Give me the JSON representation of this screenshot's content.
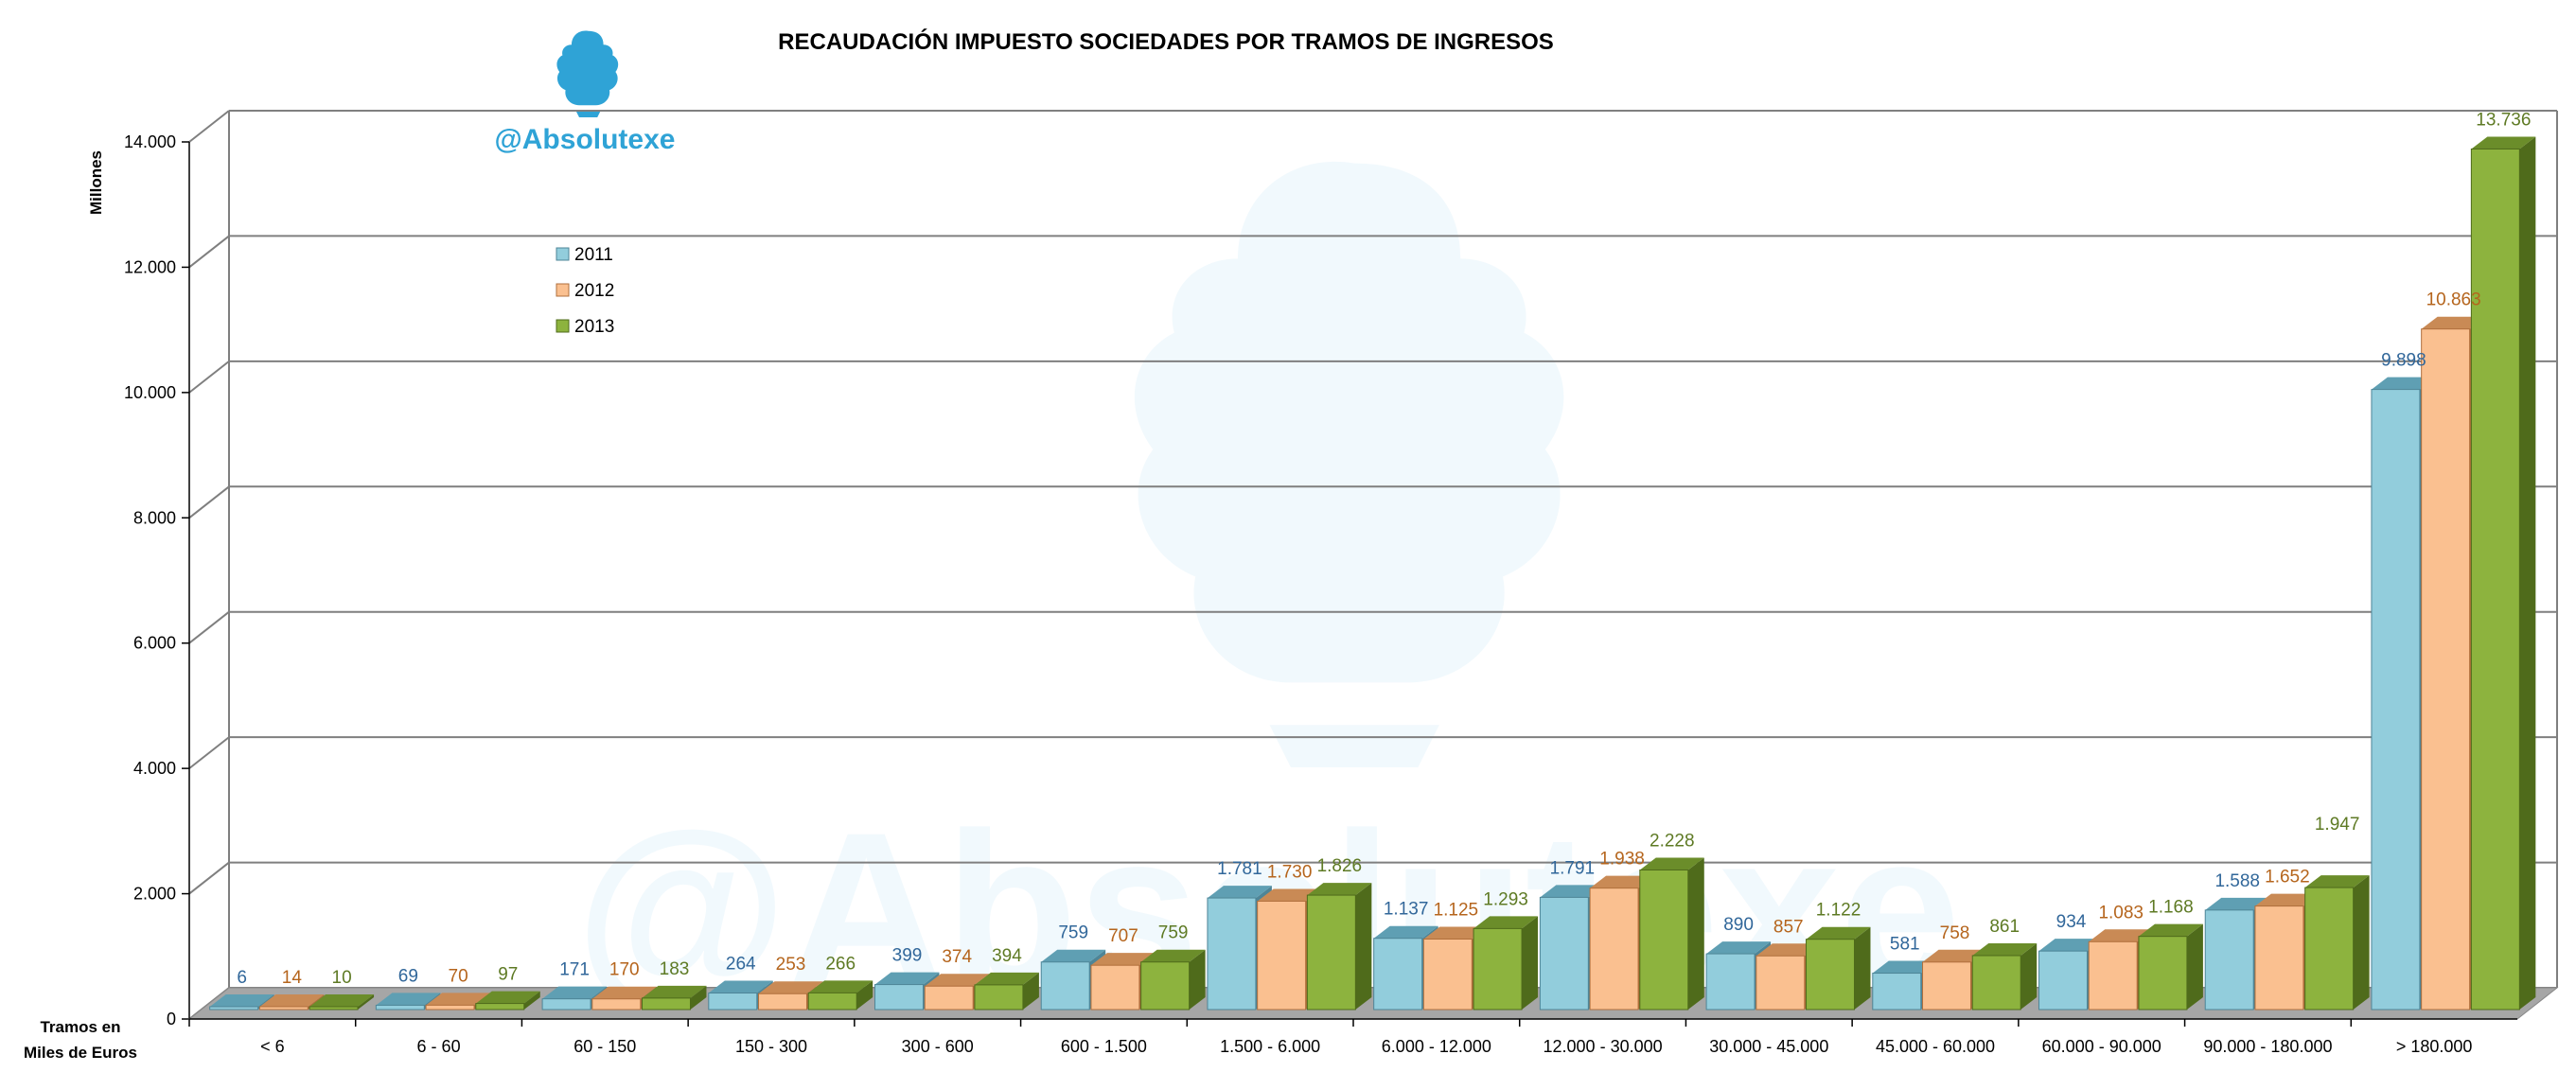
{
  "logo": {
    "handle": "@Absolutexe",
    "emblem_icon": "griffin-icon",
    "color": "#2fa3d6"
  },
  "watermark": {
    "text": "@Absolutexe",
    "emblem_icon": "griffin-icon"
  },
  "colors": {
    "2011": "#92cddc",
    "2011_top": "#5f9fb3",
    "2011_side": "#4e8597",
    "2011_label": "#31679a",
    "2012": "#fac090",
    "2012_top": "#c98a55",
    "2012_side": "#b06f3c",
    "2012_label": "#b5651d",
    "2013": "#8db33e",
    "2013_top": "#6b8d2a",
    "2013_side": "#4f6b1b",
    "2013_label": "#5e7a24",
    "floor": "#a6a6a6",
    "grid": "#7f7f7f"
  },
  "chart_data": {
    "type": "bar",
    "title": "RECAUDACIÓN IMPUESTO SOCIEDADES POR TRAMOS DE INGRESOS",
    "ylabel": "Millones",
    "xlabel": "Tramos en Miles de Euros",
    "xlabel_lines": [
      "Tramos en",
      "Miles de Euros"
    ],
    "ylim": [
      0,
      14000
    ],
    "yticks": [
      0,
      2000,
      4000,
      6000,
      8000,
      10000,
      12000,
      14000
    ],
    "ytick_labels": [
      "0",
      "2.000",
      "4.000",
      "6.000",
      "8.000",
      "10.000",
      "12.000",
      "14.000"
    ],
    "grid": true,
    "legend_position": "top-left",
    "categories": [
      "< 6",
      "6 - 60",
      "60 - 150",
      "150 - 300",
      "300 - 600",
      "600 - 1.500",
      "1.500 - 6.000",
      "6.000 - 12.000",
      "12.000 - 30.000",
      "30.000 - 45.000",
      "45.000 - 60.000",
      "60.000 - 90.000",
      "90.000 - 180.000",
      "> 180.000"
    ],
    "series": [
      {
        "name": "2011",
        "values": [
          6,
          69,
          171,
          264,
          399,
          759,
          1781,
          1137,
          1791,
          890,
          581,
          934,
          1588,
          9898
        ],
        "labels": [
          "6",
          "69",
          "171",
          "264",
          "399",
          "759",
          "1.781",
          "1.137",
          "1.791",
          "890",
          "581",
          "934",
          "1.588",
          "9.898"
        ]
      },
      {
        "name": "2012",
        "values": [
          14,
          70,
          170,
          253,
          374,
          707,
          1730,
          1125,
          1938,
          857,
          758,
          1083,
          1652,
          10863
        ],
        "labels": [
          "14",
          "70",
          "170",
          "253",
          "374",
          "707",
          "1.730",
          "1.125",
          "1.938",
          "857",
          "758",
          "1.083",
          "1.652",
          "10.863"
        ]
      },
      {
        "name": "2013",
        "values": [
          10,
          97,
          183,
          266,
          394,
          759,
          1826,
          1293,
          2228,
          1122,
          861,
          1168,
          1947,
          13736
        ],
        "labels": [
          "10",
          "97",
          "183",
          "266",
          "394",
          "759",
          "1.826",
          "1.293",
          "2.228",
          "1.122",
          "861",
          "1.168",
          "",
          "13.736"
        ]
      }
    ],
    "extra_labels": [
      {
        "category_index": 12,
        "text": "1.947"
      }
    ]
  }
}
